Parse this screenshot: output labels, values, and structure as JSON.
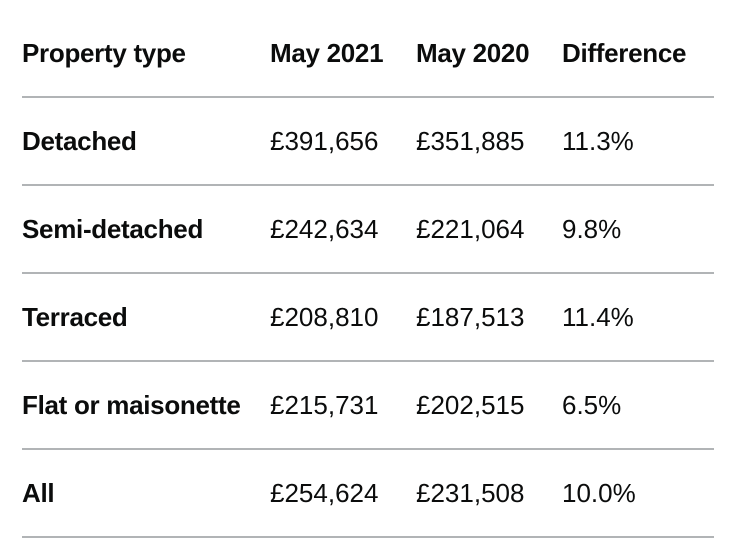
{
  "table": {
    "headers": [
      "Property type",
      "May 2021",
      "May 2020",
      "Difference"
    ],
    "rows": [
      {
        "type": "Detached",
        "may_2021": "£391,656",
        "may_2020": "£351,885",
        "difference": "11.3%"
      },
      {
        "type": "Semi-detached",
        "may_2021": "£242,634",
        "may_2020": "£221,064",
        "difference": "9.8%"
      },
      {
        "type": "Terraced",
        "may_2021": "£208,810",
        "may_2020": "£187,513",
        "difference": "11.4%"
      },
      {
        "type": "Flat or maisonette",
        "may_2021": "£215,731",
        "may_2020": "£202,515",
        "difference": "6.5%"
      },
      {
        "type": "All",
        "may_2021": "£254,624",
        "may_2020": "£231,508",
        "difference": "10.0%"
      }
    ]
  }
}
